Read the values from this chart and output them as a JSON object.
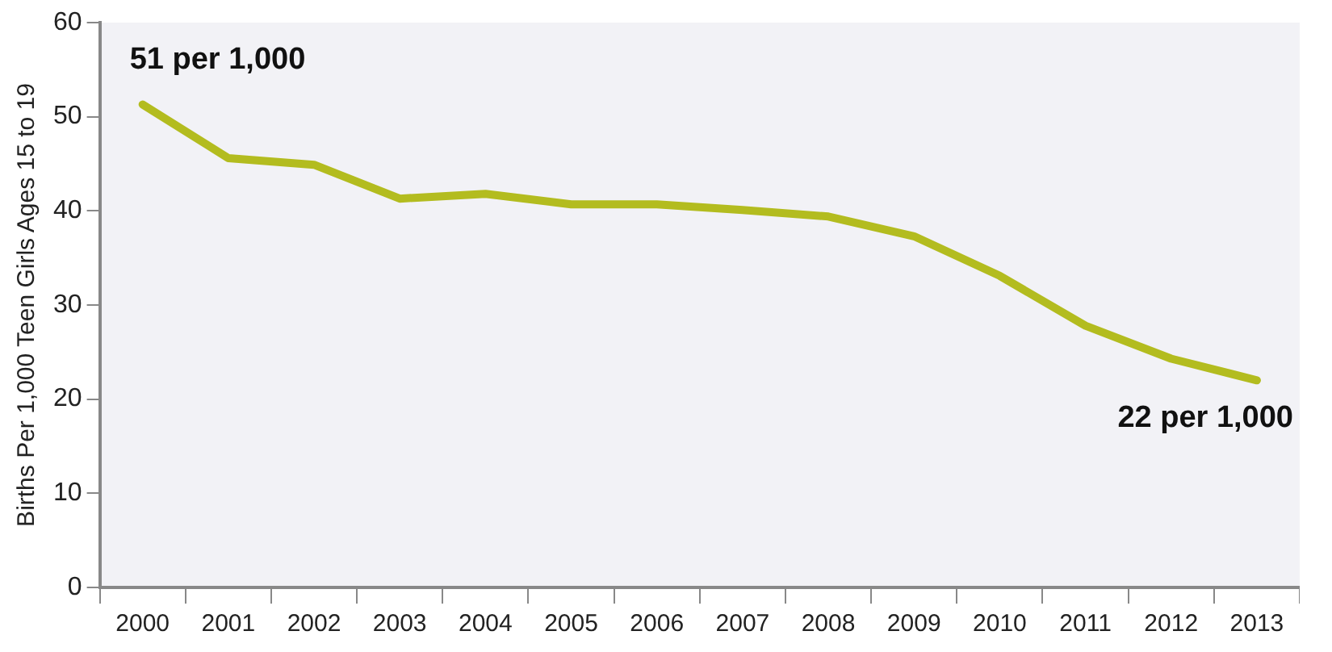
{
  "chart_data": {
    "type": "line",
    "ylabel": "Births Per 1,000 Teen Girls Ages 15 to 19",
    "categories": [
      "2000",
      "2001",
      "2002",
      "2003",
      "2004",
      "2005",
      "2006",
      "2007",
      "2008",
      "2009",
      "2010",
      "2011",
      "2012",
      "2013"
    ],
    "series": [
      {
        "color": "#b3bc1f",
        "values": [
          51.3,
          45.6,
          44.9,
          41.3,
          41.8,
          40.7,
          40.7,
          40.1,
          39.4,
          37.3,
          33.1,
          27.8,
          24.3,
          22.0
        ]
      }
    ],
    "ylim": [
      0,
      60
    ],
    "yticks": [
      0,
      10,
      20,
      30,
      40,
      50,
      60
    ],
    "grid": false,
    "legend": false,
    "marker": "none",
    "line_style": "solid",
    "annotations": [
      {
        "text": "51 per 1,000",
        "x": "2000",
        "y": 51.3
      },
      {
        "text": "22 per 1,000",
        "x": "2013",
        "y": 22.0
      }
    ]
  }
}
